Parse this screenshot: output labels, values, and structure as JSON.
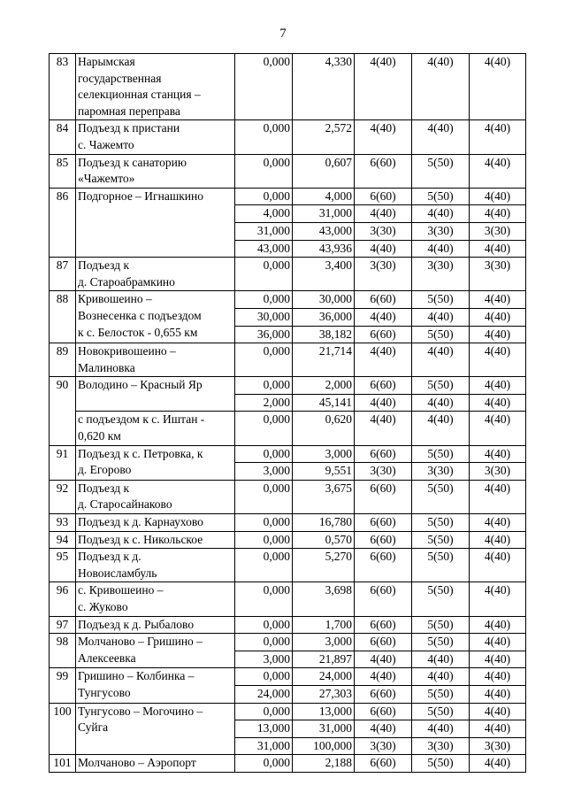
{
  "page": {
    "number": "7"
  },
  "table": {
    "roads": [
      {
        "num": "83",
        "rows": [
          {
            "name": "Нарымская\nгосударственная\nселекционная станция –\nпаромная переправа",
            "from": "0,000",
            "to": "4,330",
            "v1": "4(40)",
            "v2": "4(40)",
            "v3": "4(40)"
          }
        ]
      },
      {
        "num": "84",
        "rows": [
          {
            "name": "Подъезд к пристани\nс. Чажемто",
            "from": "0,000",
            "to": "2,572",
            "v1": "4(40)",
            "v2": "4(40)",
            "v3": "4(40)"
          }
        ]
      },
      {
        "num": "85",
        "rows": [
          {
            "name": "Подъезд к санаторию\n«Чажемто»",
            "from": "0,000",
            "to": "0,607",
            "v1": "6(60)",
            "v2": "5(50)",
            "v3": "4(40)"
          }
        ]
      },
      {
        "num": "86",
        "rows": [
          {
            "name": "Подгорное – Игнашкино",
            "from": "0,000",
            "to": "4,000",
            "v1": "6(60)",
            "v2": "5(50)",
            "v3": "4(40)"
          },
          {
            "from": "4,000",
            "to": "31,000",
            "v1": "4(40)",
            "v2": "4(40)",
            "v3": "4(40)"
          },
          {
            "from": "31,000",
            "to": "43,000",
            "v1": "3(30)",
            "v2": "3(30)",
            "v3": "3(30)"
          },
          {
            "from": "43,000",
            "to": "43,936",
            "v1": "4(40)",
            "v2": "4(40)",
            "v3": "4(40)"
          }
        ]
      },
      {
        "num": "87",
        "rows": [
          {
            "name": "Подъезд к\nд. Староабрамкино",
            "from": "0,000",
            "to": "3,400",
            "v1": "3(30)",
            "v2": "3(30)",
            "v3": "3(30)"
          }
        ]
      },
      {
        "num": "88",
        "rows": [
          {
            "name": "Кривошеино –\nВознесенка с подъездом\nк с. Белосток - 0,655 км",
            "from": "0,000",
            "to": "30,000",
            "v1": "6(60)",
            "v2": "5(50)",
            "v3": "4(40)"
          },
          {
            "from": "30,000",
            "to": "36,000",
            "v1": "4(40)",
            "v2": "4(40)",
            "v3": "4(40)"
          },
          {
            "from": "36,000",
            "to": "38,182",
            "v1": "6(60)",
            "v2": "5(50)",
            "v3": "4(40)"
          }
        ]
      },
      {
        "num": "89",
        "rows": [
          {
            "name": "Новокривошеино –\nМалиновка",
            "from": "0,000",
            "to": "21,714",
            "v1": "4(40)",
            "v2": "4(40)",
            "v3": "4(40)"
          }
        ]
      },
      {
        "num": "90",
        "rows": [
          {
            "name": "Володино – Красный Яр",
            "from": "0,000",
            "to": "2,000",
            "v1": "6(60)",
            "v2": "5(50)",
            "v3": "4(40)"
          },
          {
            "from": "2,000",
            "to": "45,141",
            "v1": "4(40)",
            "v2": "4(40)",
            "v3": "4(40)"
          },
          {
            "name": "с подъездом к с. Иштан -\n0,620 км",
            "from": "0,000",
            "to": "0,620",
            "v1": "4(40)",
            "v2": "4(40)",
            "v3": "4(40)"
          }
        ]
      },
      {
        "num": "91",
        "rows": [
          {
            "name": "Подъезд к с. Петровка, к\nд. Егорово",
            "from": "0,000",
            "to": "3,000",
            "v1": "6(60)",
            "v2": "5(50)",
            "v3": "4(40)"
          },
          {
            "from": "3,000",
            "to": "9,551",
            "v1": "3(30)",
            "v2": "3(30)",
            "v3": "3(30)"
          }
        ]
      },
      {
        "num": "92",
        "rows": [
          {
            "name": "Подъезд к\nд. Старосайнаково",
            "from": "0,000",
            "to": "3,675",
            "v1": "6(60)",
            "v2": "5(50)",
            "v3": "4(40)"
          }
        ]
      },
      {
        "num": "93",
        "rows": [
          {
            "name": "Подъезд к д. Карнаухово",
            "from": "0,000",
            "to": "16,780",
            "v1": "6(60)",
            "v2": "5(50)",
            "v3": "4(40)"
          }
        ]
      },
      {
        "num": "94",
        "rows": [
          {
            "name": "Подъезд к с. Никольское",
            "from": "0,000",
            "to": "0,570",
            "v1": "6(60)",
            "v2": "5(50)",
            "v3": "4(40)"
          }
        ]
      },
      {
        "num": "95",
        "rows": [
          {
            "name": "Подъезд к д.\nНовоисламбуль",
            "from": "0,000",
            "to": "5,270",
            "v1": "6(60)",
            "v2": "5(50)",
            "v3": "4(40)"
          }
        ]
      },
      {
        "num": "96",
        "rows": [
          {
            "name": "с. Кривошеино –\nс. Жуково",
            "from": "0,000",
            "to": "3,698",
            "v1": "6(60)",
            "v2": "5(50)",
            "v3": "4(40)"
          }
        ]
      },
      {
        "num": "97",
        "rows": [
          {
            "name": "Подъезд к д. Рыбалово",
            "from": "0,000",
            "to": "1,700",
            "v1": "6(60)",
            "v2": "5(50)",
            "v3": "4(40)"
          }
        ]
      },
      {
        "num": "98",
        "rows": [
          {
            "name": "Молчаново – Гришино –\nАлексеевка",
            "from": "0,000",
            "to": "3,000",
            "v1": "6(60)",
            "v2": "5(50)",
            "v3": "4(40)"
          },
          {
            "from": "3,000",
            "to": "21,897",
            "v1": "4(40)",
            "v2": "4(40)",
            "v3": "4(40)"
          }
        ]
      },
      {
        "num": "99",
        "rows": [
          {
            "name": "Гришино – Колбинка –\nТунгусово",
            "from": "0,000",
            "to": "24,000",
            "v1": "4(40)",
            "v2": "4(40)",
            "v3": "4(40)"
          },
          {
            "from": "24,000",
            "to": "27,303",
            "v1": "6(60)",
            "v2": "5(50)",
            "v3": "4(40)"
          }
        ]
      },
      {
        "num": "100",
        "rows": [
          {
            "name": "Тунгусово – Могочино –\nСуйга",
            "from": "0,000",
            "to": "13,000",
            "v1": "6(60)",
            "v2": "5(50)",
            "v3": "4(40)"
          },
          {
            "from": "13,000",
            "to": "31,000",
            "v1": "4(40)",
            "v2": "4(40)",
            "v3": "4(40)"
          },
          {
            "from": "31,000",
            "to": "100,000",
            "v1": "3(30)",
            "v2": "3(30)",
            "v3": "3(30)"
          }
        ]
      },
      {
        "num": "101",
        "rows": [
          {
            "name": "Молчаново – Аэропорт",
            "from": "0,000",
            "to": "2,188",
            "v1": "6(60)",
            "v2": "5(50)",
            "v3": "4(40)"
          }
        ]
      }
    ]
  }
}
